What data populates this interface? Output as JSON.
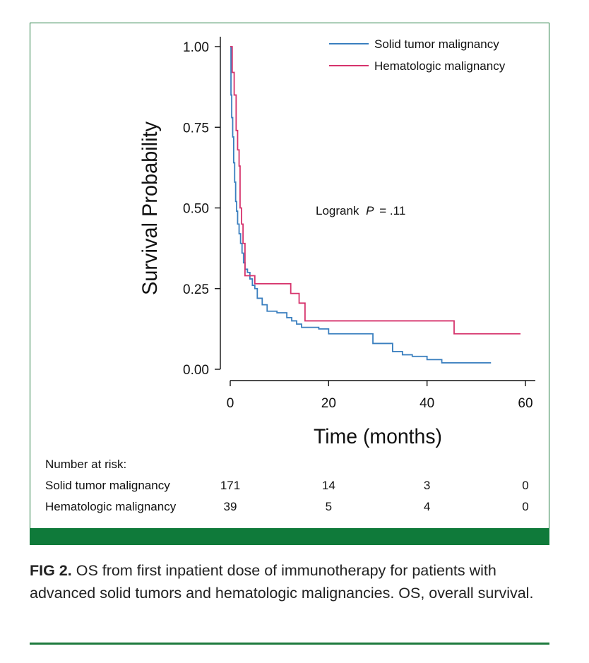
{
  "chart_data": {
    "type": "line",
    "xlabel": "Time (months)",
    "ylabel": "Survival Probability",
    "xlim": [
      0,
      60
    ],
    "ylim": [
      0,
      1
    ],
    "xticks": [
      "0",
      "20",
      "40",
      "60"
    ],
    "yticks": [
      "0.00",
      "0.25",
      "0.50",
      "0.75",
      "1.00"
    ],
    "annotation_prefix": "Logrank",
    "annotation_p": "P",
    "annotation_value": "= .11",
    "legend_position": "top-right",
    "series": [
      {
        "name": "Solid tumor malignancy",
        "color": "#3a7fbf",
        "points": [
          [
            0,
            1.0
          ],
          [
            0.15,
            0.85
          ],
          [
            0.3,
            0.78
          ],
          [
            0.5,
            0.72
          ],
          [
            0.7,
            0.64
          ],
          [
            0.9,
            0.58
          ],
          [
            1.1,
            0.52
          ],
          [
            1.3,
            0.49
          ],
          [
            1.5,
            0.45
          ],
          [
            1.8,
            0.42
          ],
          [
            2.1,
            0.39
          ],
          [
            2.4,
            0.36
          ],
          [
            2.7,
            0.33
          ],
          [
            3.0,
            0.31
          ],
          [
            3.5,
            0.3
          ],
          [
            4.0,
            0.28
          ],
          [
            4.5,
            0.26
          ],
          [
            5.0,
            0.25
          ],
          [
            5.5,
            0.22
          ],
          [
            6.5,
            0.2
          ],
          [
            7.5,
            0.18
          ],
          [
            9.5,
            0.175
          ],
          [
            11.5,
            0.16
          ],
          [
            12.5,
            0.15
          ],
          [
            13.5,
            0.14
          ],
          [
            14.5,
            0.13
          ],
          [
            18.0,
            0.125
          ],
          [
            20.0,
            0.11
          ],
          [
            29.0,
            0.08
          ],
          [
            33.0,
            0.055
          ],
          [
            35.0,
            0.045
          ],
          [
            37.0,
            0.04
          ],
          [
            40.0,
            0.03
          ],
          [
            43.0,
            0.02
          ],
          [
            53.0,
            0.02
          ]
        ]
      },
      {
        "name": "Hematologic malignancy",
        "color": "#d6336c",
        "points": [
          [
            0,
            1.0
          ],
          [
            0.4,
            0.92
          ],
          [
            0.8,
            0.85
          ],
          [
            1.2,
            0.74
          ],
          [
            1.5,
            0.68
          ],
          [
            1.8,
            0.63
          ],
          [
            2.0,
            0.5
          ],
          [
            2.3,
            0.45
          ],
          [
            2.6,
            0.39
          ],
          [
            3.0,
            0.29
          ],
          [
            5.0,
            0.265
          ],
          [
            12.3,
            0.235
          ],
          [
            14.0,
            0.205
          ],
          [
            15.2,
            0.15
          ],
          [
            45.5,
            0.11
          ],
          [
            59.0,
            0.11
          ]
        ]
      }
    ],
    "risk_table": {
      "title": "Number at risk:",
      "time_points": [
        0,
        20,
        40,
        60
      ],
      "rows": [
        {
          "label": "Solid tumor malignancy",
          "values": [
            "171",
            "14",
            "3",
            "0"
          ]
        },
        {
          "label": "Hematologic malignancy",
          "values": [
            "39",
            "5",
            "4",
            "0"
          ]
        }
      ]
    }
  },
  "caption": {
    "fig_label": "FIG 2.",
    "text": "OS from first inpatient dose of immunotherapy for patients with advanced solid tumors and hematologic malignancies. OS, overall survival."
  }
}
